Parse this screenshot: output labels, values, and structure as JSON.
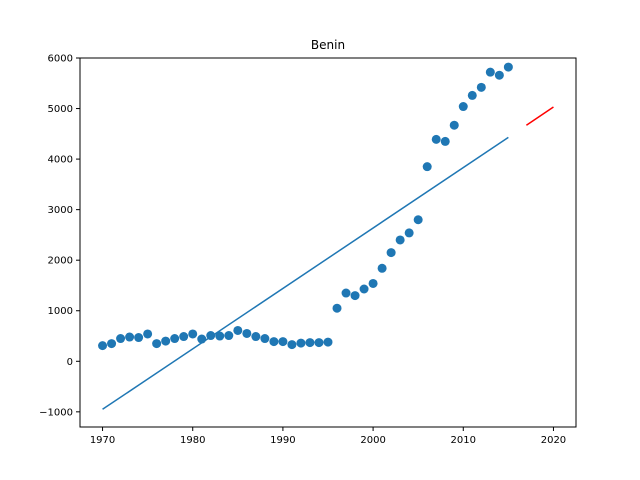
{
  "chart_data": {
    "type": "scatter",
    "title": "Benin",
    "xlabel": "",
    "ylabel": "",
    "xlim": [
      1967.5,
      2022.5
    ],
    "ylim": [
      -1300,
      6000
    ],
    "grid": false,
    "x_ticks": [
      1970,
      1980,
      1990,
      2000,
      2010,
      2020
    ],
    "y_ticks": [
      -1000,
      0,
      1000,
      2000,
      3000,
      4000,
      5000,
      6000
    ],
    "series": [
      {
        "kind": "scatter",
        "color": "#1f77b4",
        "x": [
          1970,
          1971,
          1972,
          1973,
          1974,
          1975,
          1976,
          1977,
          1978,
          1979,
          1980,
          1981,
          1982,
          1983,
          1984,
          1985,
          1986,
          1987,
          1988,
          1989,
          1990,
          1991,
          1992,
          1993,
          1994,
          1995,
          1996,
          1997,
          1998,
          1999,
          2000,
          2001,
          2002,
          2003,
          2004,
          2005,
          2006,
          2007,
          2008,
          2009,
          2010,
          2011,
          2012,
          2013,
          2014,
          2015
        ],
        "y": [
          310,
          350,
          450,
          480,
          470,
          540,
          350,
          400,
          450,
          490,
          540,
          440,
          510,
          500,
          510,
          610,
          550,
          490,
          450,
          390,
          390,
          330,
          360,
          370,
          370,
          380,
          1050,
          1350,
          1300,
          1430,
          1540,
          1840,
          2150,
          2400,
          2540,
          2800,
          3850,
          4390,
          4350,
          4670,
          5040,
          5260,
          5420,
          5720,
          5660,
          5820
        ]
      },
      {
        "kind": "line",
        "color": "#1f77b4",
        "x": [
          1970,
          2015
        ],
        "y": [
          -950,
          4430
        ]
      },
      {
        "kind": "line",
        "color": "#ff0000",
        "x": [
          2017,
          2020
        ],
        "y": [
          4670,
          5030
        ]
      }
    ]
  }
}
